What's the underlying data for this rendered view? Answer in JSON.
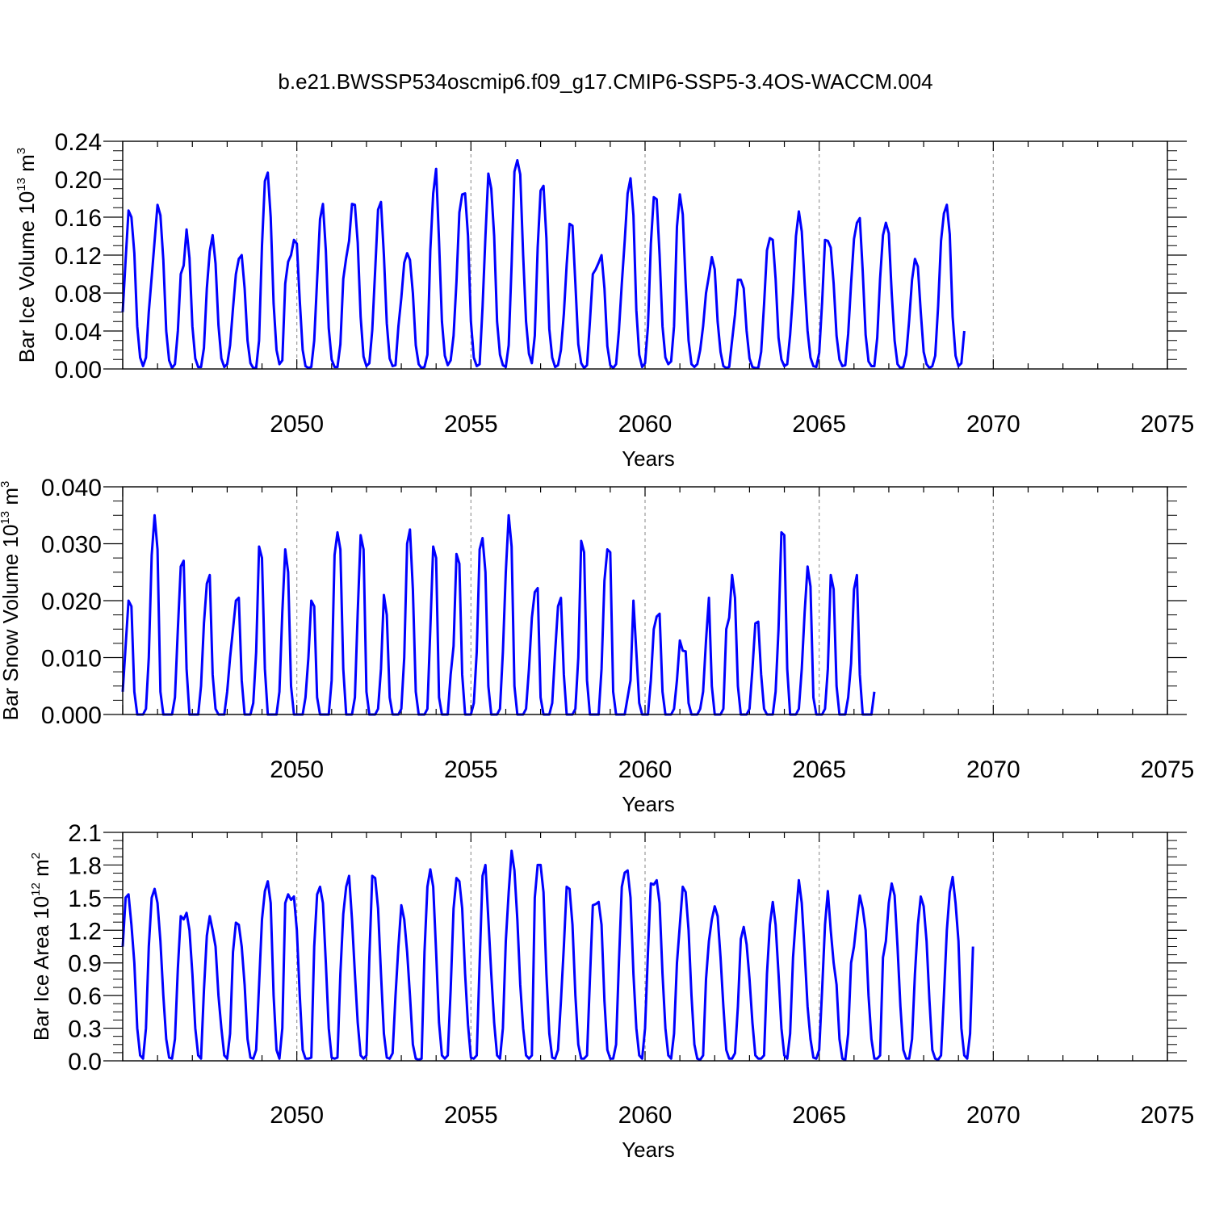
{
  "title": "b.e21.BWSSP534oscmip6.f09_g17.CMIP6-SSP5-3.4OS-WACCM.004",
  "colors": {
    "series": "#0000ff",
    "axis": "#000000",
    "grid": "#9a9a9a"
  },
  "chart_data": [
    {
      "type": "line",
      "name": "ice-volume",
      "title": "",
      "ylabel": {
        "prefix": "Bar Ice Volume 10",
        "exp": "13",
        "unit": " m",
        "unit_exp": "3"
      },
      "xlabel": "Years",
      "xlim": [
        2045.0,
        2075.0
      ],
      "ylim": [
        0.0,
        0.24
      ],
      "yticks": [
        0.0,
        0.04,
        0.08,
        0.12,
        0.16,
        0.2,
        0.24
      ],
      "ytick_labels": [
        "0.00",
        "0.04",
        "0.08",
        "0.12",
        "0.16",
        "0.20",
        "0.24"
      ],
      "xticks": [
        2050,
        2055,
        2060,
        2065,
        2070,
        2075
      ],
      "xtick_labels": [
        "2050",
        "2055",
        "2060",
        "2065",
        "2070",
        "2075"
      ],
      "grid_x": [
        2050,
        2055,
        2060,
        2065,
        2070
      ],
      "series": [
        {
          "name": "Bar Ice Volume",
          "x_start": 2045.0,
          "x_step": 0.083333,
          "values": [
            0.06,
            0.115,
            0.167,
            0.16,
            0.122,
            0.045,
            0.012,
            0.003,
            0.012,
            0.06,
            0.097,
            0.135,
            0.173,
            0.162,
            0.115,
            0.04,
            0.009,
            0.001,
            0.005,
            0.04,
            0.1,
            0.109,
            0.147,
            0.117,
            0.045,
            0.011,
            0.002,
            0.002,
            0.022,
            0.085,
            0.124,
            0.141,
            0.111,
            0.046,
            0.011,
            0.002,
            0.005,
            0.025,
            0.064,
            0.1,
            0.116,
            0.12,
            0.085,
            0.03,
            0.006,
            0.001,
            0.001,
            0.03,
            0.13,
            0.198,
            0.207,
            0.16,
            0.069,
            0.02,
            0.005,
            0.009,
            0.09,
            0.113,
            0.12,
            0.136,
            0.132,
            0.072,
            0.02,
            0.003,
            0.001,
            0.002,
            0.03,
            0.094,
            0.158,
            0.174,
            0.125,
            0.043,
            0.01,
            0.002,
            0.002,
            0.026,
            0.095,
            0.117,
            0.135,
            0.174,
            0.173,
            0.133,
            0.055,
            0.013,
            0.003,
            0.006,
            0.041,
            0.104,
            0.168,
            0.176,
            0.12,
            0.048,
            0.011,
            0.003,
            0.004,
            0.045,
            0.075,
            0.112,
            0.122,
            0.115,
            0.08,
            0.025,
            0.005,
            0.001,
            0.002,
            0.015,
            0.125,
            0.185,
            0.211,
            0.135,
            0.05,
            0.014,
            0.004,
            0.009,
            0.035,
            0.092,
            0.165,
            0.184,
            0.185,
            0.14,
            0.05,
            0.012,
            0.003,
            0.005,
            0.065,
            0.14,
            0.206,
            0.19,
            0.14,
            0.05,
            0.015,
            0.004,
            0.002,
            0.025,
            0.11,
            0.208,
            0.22,
            0.205,
            0.12,
            0.05,
            0.016,
            0.006,
            0.035,
            0.128,
            0.188,
            0.193,
            0.138,
            0.042,
            0.012,
            0.002,
            0.004,
            0.02,
            0.058,
            0.11,
            0.153,
            0.151,
            0.09,
            0.026,
            0.006,
            0.001,
            0.004,
            0.05,
            0.1,
            0.105,
            0.112,
            0.12,
            0.085,
            0.024,
            0.004,
            0.001,
            0.005,
            0.04,
            0.09,
            0.135,
            0.185,
            0.201,
            0.162,
            0.062,
            0.015,
            0.002,
            0.006,
            0.045,
            0.132,
            0.181,
            0.179,
            0.12,
            0.045,
            0.012,
            0.005,
            0.008,
            0.045,
            0.15,
            0.184,
            0.163,
            0.09,
            0.03,
            0.005,
            0.002,
            0.005,
            0.02,
            0.045,
            0.08,
            0.098,
            0.118,
            0.105,
            0.05,
            0.018,
            0.003,
            0.001,
            0.002,
            0.03,
            0.057,
            0.094,
            0.094,
            0.085,
            0.04,
            0.011,
            0.002,
            0.001,
            0.001,
            0.018,
            0.068,
            0.125,
            0.138,
            0.136,
            0.095,
            0.033,
            0.01,
            0.003,
            0.005,
            0.036,
            0.08,
            0.14,
            0.166,
            0.145,
            0.09,
            0.04,
            0.012,
            0.003,
            0.002,
            0.017,
            0.07,
            0.136,
            0.135,
            0.128,
            0.09,
            0.035,
            0.01,
            0.003,
            0.004,
            0.037,
            0.09,
            0.137,
            0.154,
            0.159,
            0.103,
            0.036,
            0.008,
            0.003,
            0.003,
            0.033,
            0.095,
            0.141,
            0.154,
            0.143,
            0.08,
            0.03,
            0.005,
            0.001,
            0.002,
            0.015,
            0.051,
            0.094,
            0.116,
            0.108,
            0.06,
            0.018,
            0.005,
            0.001,
            0.003,
            0.014,
            0.066,
            0.135,
            0.164,
            0.173,
            0.142,
            0.055,
            0.014,
            0.003,
            0.006,
            0.04
          ]
        }
      ]
    },
    {
      "type": "line",
      "name": "snow-volume",
      "title": "",
      "ylabel": {
        "prefix": "Bar Snow Volume 10",
        "exp": "13",
        "unit": " m",
        "unit_exp": "3"
      },
      "xlabel": "Years",
      "xlim": [
        2045.0,
        2075.0
      ],
      "ylim": [
        0.0,
        0.04
      ],
      "yticks": [
        0.0,
        0.01,
        0.02,
        0.03,
        0.04
      ],
      "ytick_labels": [
        "0.000",
        "0.010",
        "0.020",
        "0.030",
        "0.040"
      ],
      "xticks": [
        2050,
        2055,
        2060,
        2065,
        2070,
        2075
      ],
      "xtick_labels": [
        "2050",
        "2055",
        "2060",
        "2065",
        "2070",
        "2075"
      ],
      "grid_x": [
        2050,
        2055,
        2060,
        2065,
        2070
      ],
      "series": [
        {
          "name": "Bar Snow Volume",
          "x_start": 2045.0,
          "x_step": 0.083333,
          "values": [
            0.004,
            0.012,
            0.02,
            0.019,
            0.004,
            0.0,
            0.0,
            0.0,
            0.001,
            0.01,
            0.028,
            0.035,
            0.029,
            0.004,
            0.0,
            0.0,
            0.0,
            0.0,
            0.003,
            0.015,
            0.026,
            0.027,
            0.008,
            0.0,
            0.0,
            0.0,
            0.0,
            0.005,
            0.016,
            0.023,
            0.0245,
            0.007,
            0.001,
            0.0,
            0.0,
            0.0,
            0.004,
            0.01,
            0.015,
            0.02,
            0.0205,
            0.006,
            0.0,
            0.0,
            0.0,
            0.002,
            0.011,
            0.0295,
            0.0275,
            0.008,
            0.0,
            0.0,
            0.0,
            0.0,
            0.004,
            0.018,
            0.029,
            0.025,
            0.005,
            0.0,
            0.0,
            0.0,
            0.0,
            0.003,
            0.01,
            0.02,
            0.019,
            0.003,
            0.0,
            0.0,
            0.0,
            0.0,
            0.006,
            0.028,
            0.032,
            0.029,
            0.008,
            0.0,
            0.0,
            0.0,
            0.003,
            0.018,
            0.0315,
            0.029,
            0.004,
            0.0,
            0.0,
            0.0,
            0.001,
            0.008,
            0.021,
            0.0175,
            0.003,
            0.0,
            0.0,
            0.0,
            0.001,
            0.01,
            0.03,
            0.0325,
            0.022,
            0.004,
            0.0,
            0.0,
            0.0,
            0.001,
            0.015,
            0.0295,
            0.0275,
            0.003,
            0.0,
            0.0,
            0.0,
            0.007,
            0.012,
            0.0282,
            0.0265,
            0.007,
            0.0,
            0.0,
            0.0,
            0.002,
            0.011,
            0.029,
            0.031,
            0.025,
            0.005,
            0.0,
            0.0,
            0.0,
            0.001,
            0.011,
            0.025,
            0.035,
            0.0295,
            0.005,
            0.0,
            0.0,
            0.0,
            0.001,
            0.008,
            0.017,
            0.0215,
            0.0222,
            0.003,
            0.0,
            0.0,
            0.0,
            0.002,
            0.011,
            0.019,
            0.0205,
            0.007,
            0.0,
            0.0,
            0.0,
            0.001,
            0.01,
            0.0305,
            0.0285,
            0.006,
            0.0,
            0.0,
            0.0,
            0.0,
            0.008,
            0.0235,
            0.029,
            0.0285,
            0.004,
            0.0,
            0.0,
            0.0,
            0.0,
            0.003,
            0.006,
            0.02,
            0.011,
            0.002,
            0.0,
            0.0,
            0.0,
            0.006,
            0.015,
            0.0172,
            0.0177,
            0.004,
            0.0,
            0.0,
            0.0,
            0.001,
            0.006,
            0.013,
            0.0112,
            0.0111,
            0.002,
            0.0,
            0.0,
            0.0,
            0.001,
            0.004,
            0.013,
            0.0205,
            0.005,
            0.0,
            0.0,
            0.0,
            0.001,
            0.015,
            0.017,
            0.0245,
            0.0205,
            0.005,
            0.0,
            0.0,
            0.0,
            0.001,
            0.008,
            0.016,
            0.0163,
            0.007,
            0.001,
            0.0,
            0.0,
            0.0,
            0.004,
            0.015,
            0.032,
            0.0315,
            0.008,
            0.0,
            0.0,
            0.0,
            0.001,
            0.008,
            0.018,
            0.026,
            0.0225,
            0.003,
            0.0,
            0.0,
            0.0,
            0.001,
            0.008,
            0.0245,
            0.022,
            0.005,
            0.0,
            0.0,
            0.0,
            0.003,
            0.009,
            0.022,
            0.0245,
            0.007,
            0.0,
            0.0,
            0.0,
            0.0,
            0.004
          ]
        }
      ]
    },
    {
      "type": "line",
      "name": "ice-area",
      "title": "",
      "ylabel": {
        "prefix": "Bar Ice Area 10",
        "exp": "12",
        "unit": " m",
        "unit_exp": "2"
      },
      "xlabel": "Years",
      "xlim": [
        2045.0,
        2075.0
      ],
      "ylim": [
        0.0,
        2.1
      ],
      "yticks": [
        0.0,
        0.3,
        0.6,
        0.9,
        1.2,
        1.5,
        1.8,
        2.1
      ],
      "ytick_labels": [
        "0.0",
        "0.3",
        "0.6",
        "0.9",
        "1.2",
        "1.5",
        "1.8",
        "2.1"
      ],
      "xticks": [
        2050,
        2055,
        2060,
        2065,
        2070,
        2075
      ],
      "xtick_labels": [
        "2050",
        "2055",
        "2060",
        "2065",
        "2070",
        "2075"
      ],
      "grid_x": [
        2050,
        2055,
        2060,
        2065,
        2070
      ],
      "series": [
        {
          "name": "Bar Ice Area",
          "x_start": 2045.0,
          "x_step": 0.083333,
          "values": [
            1.05,
            1.5,
            1.53,
            1.25,
            0.9,
            0.3,
            0.05,
            0.02,
            0.3,
            1.05,
            1.5,
            1.58,
            1.45,
            1.1,
            0.6,
            0.2,
            0.03,
            0.02,
            0.2,
            0.85,
            1.33,
            1.3,
            1.36,
            1.2,
            0.8,
            0.3,
            0.05,
            0.02,
            0.65,
            1.15,
            1.33,
            1.2,
            1.05,
            0.6,
            0.3,
            0.05,
            0.02,
            0.25,
            1.0,
            1.27,
            1.25,
            1.05,
            0.7,
            0.2,
            0.03,
            0.02,
            0.1,
            0.7,
            1.3,
            1.56,
            1.65,
            1.45,
            0.6,
            0.1,
            0.02,
            0.3,
            1.45,
            1.53,
            1.48,
            1.51,
            1.2,
            0.6,
            0.1,
            0.02,
            0.02,
            0.03,
            1.05,
            1.53,
            1.6,
            1.45,
            0.9,
            0.3,
            0.03,
            0.02,
            0.03,
            0.8,
            1.35,
            1.6,
            1.7,
            1.3,
            0.8,
            0.35,
            0.05,
            0.02,
            0.05,
            0.95,
            1.7,
            1.68,
            1.4,
            0.8,
            0.25,
            0.03,
            0.02,
            0.07,
            0.6,
            1.05,
            1.43,
            1.3,
            1.0,
            0.6,
            0.15,
            0.02,
            0.01,
            0.02,
            1.0,
            1.6,
            1.76,
            1.6,
            1.0,
            0.35,
            0.05,
            0.02,
            0.05,
            0.65,
            1.4,
            1.68,
            1.65,
            1.4,
            0.8,
            0.33,
            0.03,
            0.02,
            0.05,
            0.9,
            1.7,
            1.8,
            1.3,
            0.8,
            0.35,
            0.05,
            0.02,
            0.3,
            1.1,
            1.55,
            1.93,
            1.75,
            1.3,
            0.7,
            0.3,
            0.05,
            0.02,
            0.05,
            1.5,
            1.8,
            1.8,
            1.55,
            0.8,
            0.25,
            0.03,
            0.02,
            0.1,
            0.55,
            1.05,
            1.6,
            1.58,
            1.25,
            0.6,
            0.15,
            0.02,
            0.02,
            0.05,
            0.75,
            1.43,
            1.44,
            1.46,
            1.25,
            0.55,
            0.1,
            0.02,
            0.02,
            0.15,
            0.9,
            1.6,
            1.73,
            1.75,
            1.5,
            0.8,
            0.3,
            0.05,
            0.02,
            0.3,
            1.0,
            1.63,
            1.62,
            1.66,
            1.45,
            0.8,
            0.3,
            0.05,
            0.02,
            0.25,
            0.9,
            1.25,
            1.6,
            1.55,
            1.2,
            0.6,
            0.15,
            0.02,
            0.01,
            0.05,
            0.75,
            1.1,
            1.3,
            1.42,
            1.33,
            0.95,
            0.5,
            0.1,
            0.02,
            0.02,
            0.07,
            0.5,
            1.12,
            1.23,
            1.07,
            0.75,
            0.35,
            0.05,
            0.02,
            0.02,
            0.05,
            0.8,
            1.25,
            1.46,
            1.25,
            0.8,
            0.3,
            0.05,
            0.02,
            0.25,
            0.95,
            1.33,
            1.66,
            1.45,
            1.0,
            0.5,
            0.2,
            0.03,
            0.02,
            0.1,
            0.65,
            1.25,
            1.56,
            1.2,
            0.9,
            0.7,
            0.2,
            0.02,
            0.01,
            0.25,
            0.9,
            1.05,
            1.3,
            1.52,
            1.4,
            1.2,
            0.6,
            0.2,
            0.02,
            0.02,
            0.05,
            0.95,
            1.1,
            1.45,
            1.63,
            1.52,
            1.05,
            0.5,
            0.1,
            0.02,
            0.02,
            0.2,
            0.8,
            1.25,
            1.51,
            1.42,
            1.1,
            0.55,
            0.1,
            0.02,
            0.01,
            0.05,
            0.6,
            1.2,
            1.55,
            1.69,
            1.45,
            1.1,
            0.3,
            0.05,
            0.02,
            0.25,
            1.05
          ]
        }
      ]
    }
  ]
}
